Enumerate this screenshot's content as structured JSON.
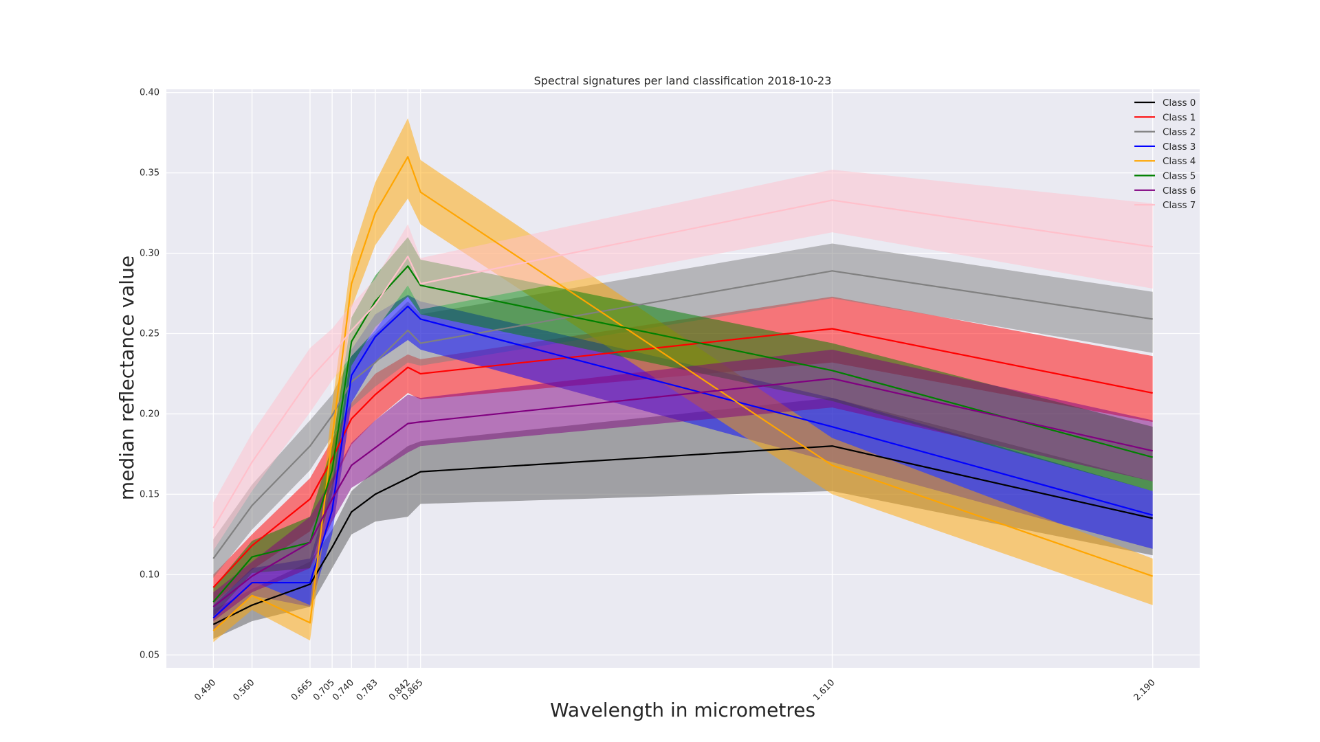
{
  "chart_data": {
    "type": "line",
    "title": "Spectral signatures per land classification 2018-10-23",
    "xlabel": "Wavelength in micrometres",
    "ylabel": "median reflectance value",
    "x": [
      0.49,
      0.56,
      0.665,
      0.705,
      0.74,
      0.783,
      0.842,
      0.865,
      1.61,
      2.19
    ],
    "x_tick_labels": [
      "0.490",
      "0.560",
      "0.665",
      "0.705",
      "0.740",
      "0.783",
      "0.842",
      "0.865",
      "1.610",
      "2.190"
    ],
    "xlim": [
      0.405,
      2.275
    ],
    "ylim": [
      0.042,
      0.402
    ],
    "y_ticks": [
      0.05,
      0.1,
      0.15,
      0.2,
      0.25,
      0.3,
      0.35,
      0.4
    ],
    "y_tick_labels": [
      "0.05",
      "0.10",
      "0.15",
      "0.20",
      "0.25",
      "0.30",
      "0.35",
      "0.40"
    ],
    "grid": true,
    "legend_position": "top-right",
    "series": [
      {
        "name": "Class 0",
        "color": "#000000",
        "band_color": "#555555",
        "values": [
          0.069,
          0.081,
          0.094,
          0.117,
          0.139,
          0.15,
          0.16,
          0.164,
          0.18,
          0.135
        ],
        "lower": [
          0.06,
          0.071,
          0.08,
          0.104,
          0.125,
          0.133,
          0.136,
          0.144,
          0.152,
          0.112
        ],
        "upper": [
          0.078,
          0.091,
          0.108,
          0.128,
          0.152,
          0.165,
          0.18,
          0.183,
          0.21,
          0.158
        ]
      },
      {
        "name": "Class 1",
        "color": "#ff0000",
        "band_color": "#ff0000",
        "values": [
          0.092,
          0.118,
          0.147,
          0.172,
          0.197,
          0.212,
          0.229,
          0.225,
          0.253,
          0.213
        ],
        "lower": [
          0.082,
          0.103,
          0.127,
          0.156,
          0.181,
          0.196,
          0.213,
          0.209,
          0.232,
          0.195
        ],
        "upper": [
          0.1,
          0.125,
          0.16,
          0.184,
          0.207,
          0.225,
          0.237,
          0.234,
          0.273,
          0.236
        ]
      },
      {
        "name": "Class 2",
        "color": "#808080",
        "band_color": "#808080",
        "values": [
          0.11,
          0.143,
          0.18,
          0.199,
          0.22,
          0.232,
          0.252,
          0.244,
          0.289,
          0.259
        ],
        "lower": [
          0.098,
          0.128,
          0.165,
          0.186,
          0.204,
          0.217,
          0.232,
          0.23,
          0.272,
          0.238
        ],
        "upper": [
          0.122,
          0.156,
          0.196,
          0.212,
          0.236,
          0.25,
          0.27,
          0.262,
          0.306,
          0.276
        ]
      },
      {
        "name": "Class 3",
        "color": "#0000ff",
        "band_color": "#0000ff",
        "values": [
          0.073,
          0.095,
          0.095,
          0.14,
          0.224,
          0.248,
          0.267,
          0.259,
          0.192,
          0.137
        ],
        "lower": [
          0.065,
          0.087,
          0.08,
          0.125,
          0.207,
          0.232,
          0.246,
          0.24,
          0.17,
          0.116
        ],
        "upper": [
          0.081,
          0.104,
          0.11,
          0.156,
          0.24,
          0.262,
          0.274,
          0.27,
          0.21,
          0.152
        ]
      },
      {
        "name": "Class 4",
        "color": "#ffa500",
        "band_color": "#ffa500",
        "values": [
          0.065,
          0.087,
          0.07,
          0.185,
          0.281,
          0.325,
          0.36,
          0.338,
          0.168,
          0.099
        ],
        "lower": [
          0.058,
          0.078,
          0.059,
          0.165,
          0.266,
          0.305,
          0.334,
          0.318,
          0.15,
          0.081
        ],
        "upper": [
          0.073,
          0.096,
          0.081,
          0.205,
          0.298,
          0.344,
          0.384,
          0.358,
          0.185,
          0.11
        ]
      },
      {
        "name": "Class 5",
        "color": "#008000",
        "band_color": "#008000",
        "values": [
          0.083,
          0.111,
          0.12,
          0.165,
          0.245,
          0.27,
          0.292,
          0.28,
          0.227,
          0.173
        ],
        "lower": [
          0.074,
          0.101,
          0.104,
          0.15,
          0.23,
          0.254,
          0.273,
          0.262,
          0.208,
          0.152
        ],
        "upper": [
          0.092,
          0.121,
          0.136,
          0.18,
          0.26,
          0.286,
          0.31,
          0.296,
          0.244,
          0.192
        ]
      },
      {
        "name": "Class 6",
        "color": "#800080",
        "band_color": "#800080",
        "values": [
          0.08,
          0.099,
          0.12,
          0.147,
          0.168,
          0.179,
          0.194,
          0.195,
          0.222,
          0.177
        ],
        "lower": [
          0.071,
          0.089,
          0.104,
          0.133,
          0.154,
          0.163,
          0.176,
          0.18,
          0.204,
          0.158
        ],
        "upper": [
          0.089,
          0.108,
          0.136,
          0.16,
          0.182,
          0.196,
          0.212,
          0.21,
          0.24,
          0.196
        ]
      },
      {
        "name": "Class 7",
        "color": "#ffc0cb",
        "band_color": "#ffc0cb",
        "values": [
          0.129,
          0.17,
          0.222,
          0.237,
          0.252,
          0.268,
          0.298,
          0.281,
          0.333,
          0.304
        ],
        "lower": [
          0.115,
          0.152,
          0.201,
          0.221,
          0.236,
          0.252,
          0.28,
          0.265,
          0.313,
          0.278
        ],
        "upper": [
          0.145,
          0.188,
          0.241,
          0.253,
          0.268,
          0.284,
          0.318,
          0.297,
          0.352,
          0.331
        ]
      }
    ]
  }
}
